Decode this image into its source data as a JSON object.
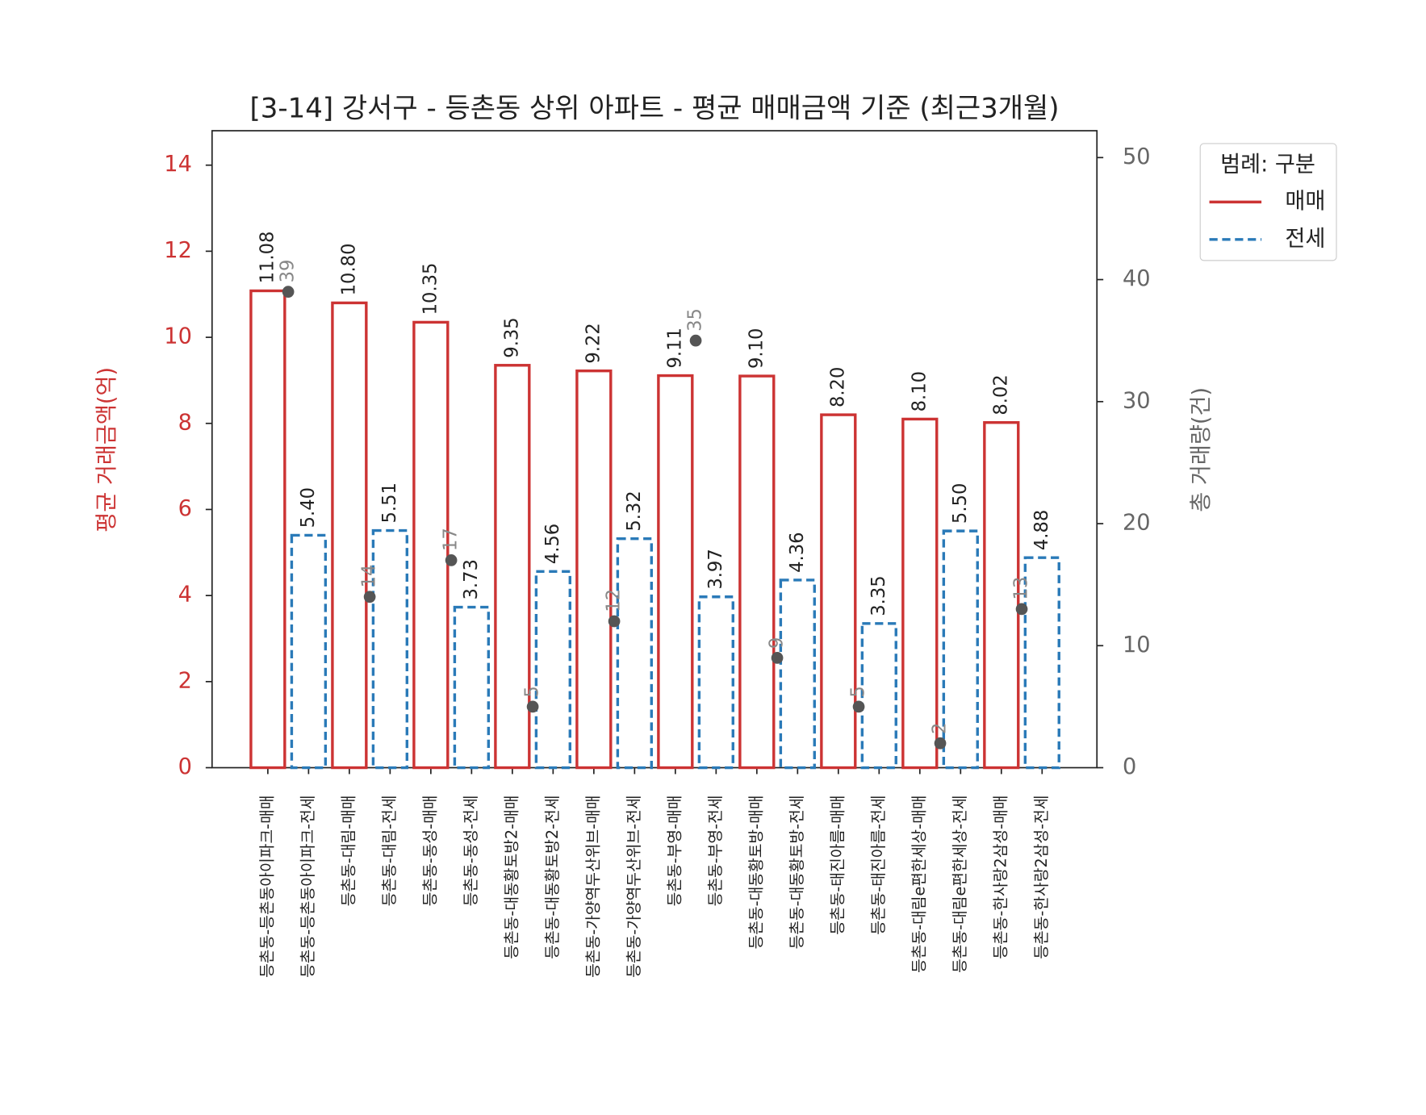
{
  "chart_data": {
    "type": "bar",
    "title": "[3-14] 강서구 - 등촌동 상위 아파트 - 평균 매매금액 기준 (최근3개월)",
    "ylabel": "평균 거래금액(억)",
    "y2label": "총 거래량(건)",
    "legend_title": "범례: 구분",
    "legend": "upper right outside",
    "categories": [
      "등촌동-등촌동아이파크-매매",
      "등촌동-등촌동아이파크-전세",
      "등촌동-대림-매매",
      "등촌동-대림-전세",
      "등촌동-동성-매매",
      "등촌동-동성-전세",
      "등촌동-대동황토방2-매매",
      "등촌동-대동황토방2-전세",
      "등촌동-가양역두산위브-매매",
      "등촌동-가양역두산위브-전세",
      "등촌동-부영-매매",
      "등촌동-부영-전세",
      "등촌동-대동황토방-매매",
      "등촌동-대동황토방-전세",
      "등촌동-태진아름-매매",
      "등촌동-태진아름-전세",
      "등촌동-대림e편한세상-매매",
      "등촌동-대림e편한세상-전세",
      "등촌동-한사랑2삼성-매매",
      "등촌동-한사랑2삼성-전세"
    ],
    "series": [
      {
        "name": "매매",
        "color": "#cc3333",
        "dash": false,
        "values": [
          11.08,
          null,
          10.8,
          null,
          10.35,
          null,
          9.35,
          null,
          9.22,
          null,
          9.11,
          null,
          9.1,
          null,
          8.2,
          null,
          8.1,
          null,
          8.02,
          null
        ],
        "value_labels": [
          "11.08",
          null,
          "10.80",
          null,
          "10.35",
          null,
          "9.35",
          null,
          "9.22",
          null,
          "9.11",
          null,
          "9.10",
          null,
          "8.20",
          null,
          "8.10",
          null,
          "8.02",
          null
        ]
      },
      {
        "name": "전세",
        "color": "#2a7ab8",
        "dash": true,
        "values": [
          null,
          5.4,
          null,
          5.51,
          null,
          3.73,
          null,
          4.56,
          null,
          5.32,
          null,
          3.97,
          null,
          4.36,
          null,
          3.35,
          null,
          5.5,
          null,
          4.88
        ],
        "value_labels": [
          null,
          "5.40",
          null,
          "5.51",
          null,
          "3.73",
          null,
          "4.56",
          null,
          "5.32",
          null,
          "3.97",
          null,
          "4.36",
          null,
          "3.35",
          null,
          "5.50",
          null,
          "4.88"
        ]
      }
    ],
    "counts": {
      "axis": "y2",
      "color": "#555555",
      "values": [
        39,
        14,
        17,
        5,
        12,
        35,
        9,
        5,
        2,
        13
      ]
    },
    "ylim": [
      0,
      14.8
    ],
    "yticks": [
      0,
      2,
      4,
      6,
      8,
      10,
      12,
      14
    ],
    "y2lim": [
      0,
      52.2
    ],
    "y2ticks": [
      0,
      10,
      20,
      30,
      40,
      50
    ]
  }
}
